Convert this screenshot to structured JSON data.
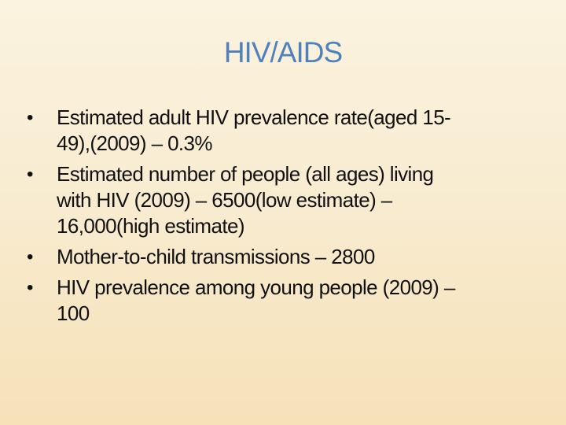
{
  "slide": {
    "title": "HIV/AIDS",
    "bullets": [
      {
        "lines": [
          "Estimated adult HIV prevalence rate(aged 15-",
          "49),(2009) – 0.3%"
        ]
      },
      {
        "lines": [
          "Estimated number of people (all ages) living",
          "with HIV (2009) – 6500(low estimate) –",
          "16,000(high estimate)"
        ]
      },
      {
        "lines": [
          "Mother-to-child transmissions – 2800"
        ]
      },
      {
        "lines": [
          "HIV prevalence among young people (2009) –",
          "100"
        ]
      }
    ]
  },
  "colors": {
    "title": "#4f81bd",
    "text": "#111111",
    "background_top": "#fbf3e0",
    "background_bottom": "#f6e1b8"
  }
}
